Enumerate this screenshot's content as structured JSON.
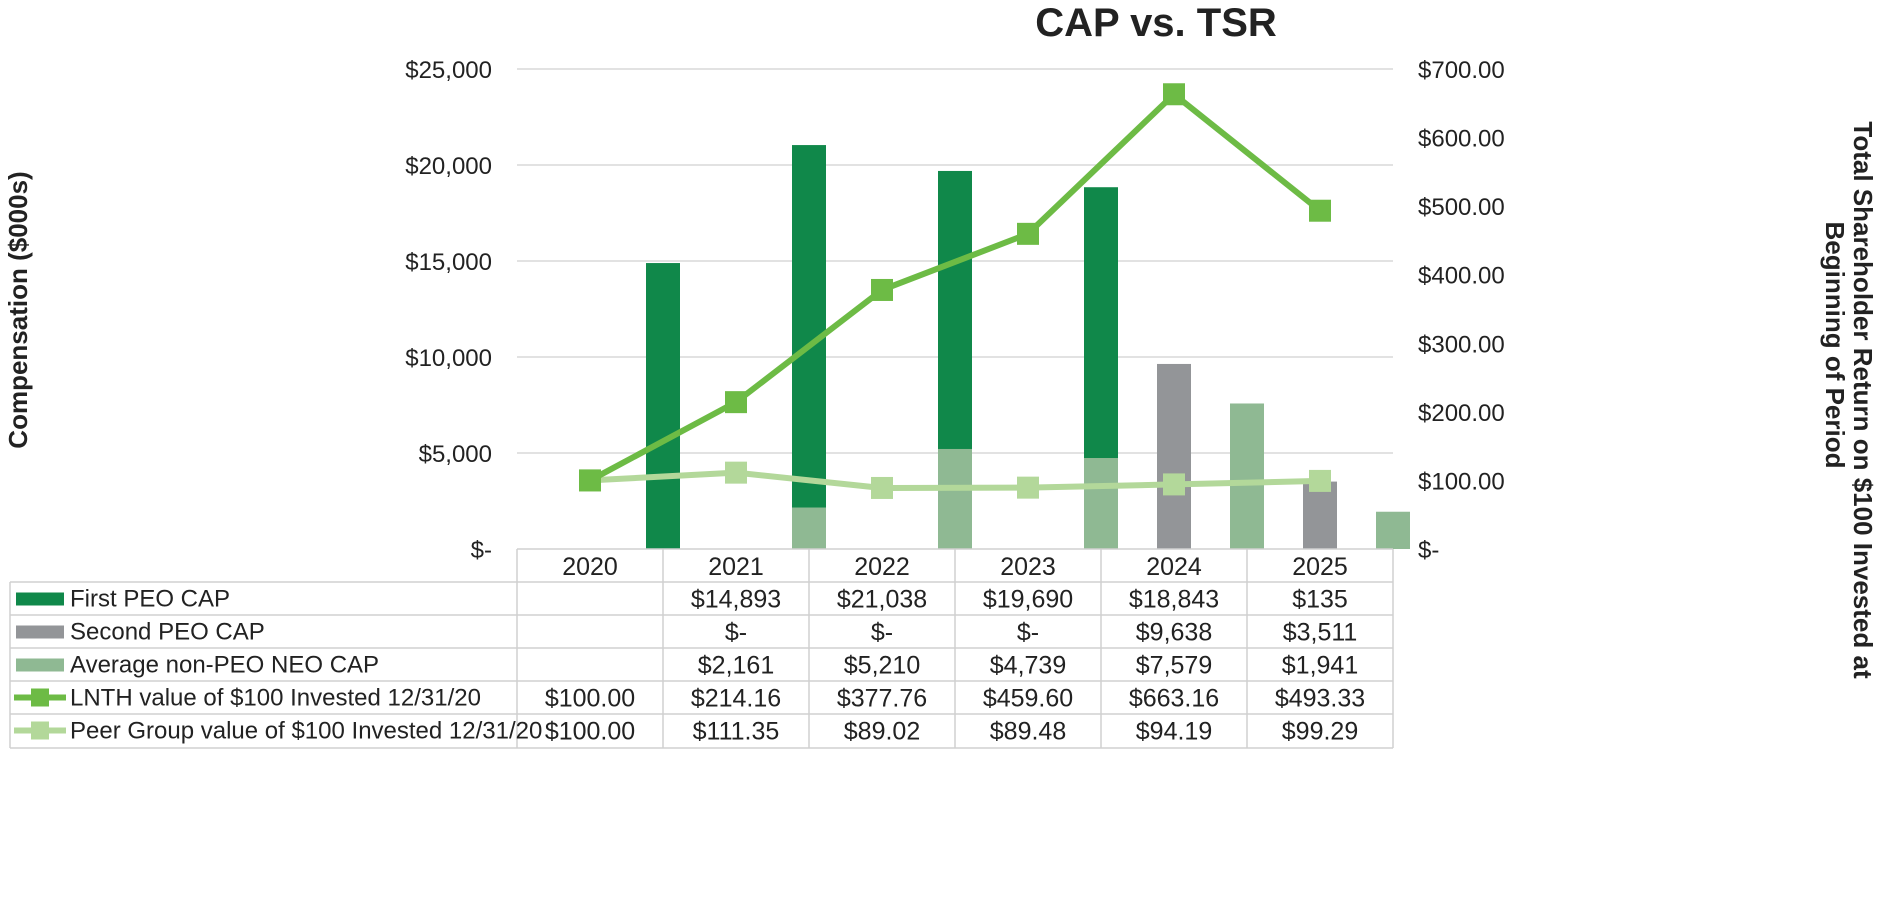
{
  "chart_data": {
    "type": "bar",
    "title": "CAP vs. TSR",
    "categories": [
      "2020",
      "2021",
      "2022",
      "2023",
      "2024",
      "2025"
    ],
    "ylabel": "Compensation ($000s)",
    "y2label_line1": "Total Shareholder Return on $100 Invested at",
    "y2label_line2": "Beginning of Period",
    "ylim": [
      0,
      25000
    ],
    "y2lim": [
      0,
      700
    ],
    "yticks": [
      {
        "value": 0,
        "label": "$-"
      },
      {
        "value": 5000,
        "label": "$5,000"
      },
      {
        "value": 10000,
        "label": "$10,000"
      },
      {
        "value": 15000,
        "label": "$15,000"
      },
      {
        "value": 20000,
        "label": "$20,000"
      },
      {
        "value": 25000,
        "label": "$25,000"
      }
    ],
    "y2ticks": [
      {
        "value": 0,
        "label": "$-"
      },
      {
        "value": 100,
        "label": "$100.00"
      },
      {
        "value": 200,
        "label": "$200.00"
      },
      {
        "value": 300,
        "label": "$300.00"
      },
      {
        "value": 400,
        "label": "$400.00"
      },
      {
        "value": 500,
        "label": "$500.00"
      },
      {
        "value": 600,
        "label": "$600.00"
      },
      {
        "value": 700,
        "label": "$700.00"
      }
    ],
    "bar_series": [
      {
        "name": "First PEO CAP",
        "color": "#10884a",
        "values": [
          null,
          14893,
          21038,
          19690,
          18843,
          135
        ],
        "labels": [
          "",
          "$14,893",
          "$21,038",
          "$19,690",
          "$18,843",
          "$135"
        ]
      },
      {
        "name": "Second PEO CAP",
        "color": "#939598",
        "values": [
          null,
          0,
          0,
          0,
          9638,
          3511
        ],
        "labels": [
          "",
          "$-",
          "$-",
          "$-",
          "$9,638",
          "$3,511"
        ]
      },
      {
        "name": "Average non-PEO NEO CAP",
        "color": "#8fb993",
        "values": [
          null,
          2161,
          5210,
          4739,
          7579,
          1941
        ],
        "labels": [
          "",
          "$2,161",
          "$5,210",
          "$4,739",
          "$7,579",
          "$1,941"
        ]
      }
    ],
    "line_series": [
      {
        "name": "LNTH value of $100 Invested 12/31/20",
        "color": "#6dbb45",
        "values": [
          100.0,
          214.16,
          377.76,
          459.6,
          663.16,
          493.33
        ],
        "labels": [
          "$100.00",
          "$214.16",
          "$377.76",
          "$459.60",
          "$663.16",
          "$493.33"
        ]
      },
      {
        "name": "Peer Group value of $100 Invested 12/31/20",
        "color": "#b3d89a",
        "values": [
          100.0,
          111.35,
          89.02,
          89.48,
          94.19,
          99.29
        ],
        "labels": [
          "$100.00",
          "$111.35",
          "$89.02",
          "$89.48",
          "$94.19",
          "$99.29"
        ]
      }
    ]
  }
}
